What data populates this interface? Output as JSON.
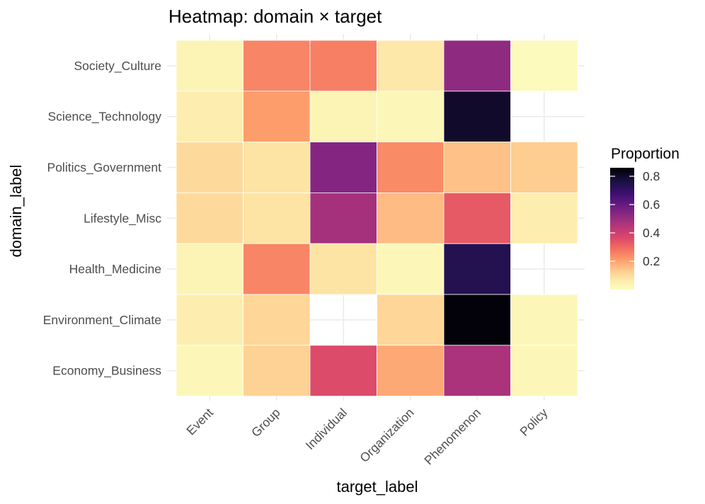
{
  "chart_data": {
    "type": "heatmap",
    "title": "Heatmap: domain × target",
    "xlabel": "target_label",
    "ylabel": "domain_label",
    "x": [
      "Event",
      "Group",
      "Individual",
      "Organization",
      "Phenomenon",
      "Policy"
    ],
    "y": [
      "Society_Culture",
      "Science_Technology",
      "Politics_Government",
      "Lifestyle_Misc",
      "Health_Medicine",
      "Environment_Climate",
      "Economy_Business"
    ],
    "values": [
      [
        0.03,
        0.25,
        0.26,
        0.07,
        0.52,
        0.01
      ],
      [
        0.05,
        0.21,
        0.03,
        0.02,
        0.8,
        null
      ],
      [
        0.1,
        0.08,
        0.54,
        0.24,
        0.15,
        0.13
      ],
      [
        0.1,
        0.08,
        0.48,
        0.16,
        0.33,
        0.05
      ],
      [
        0.03,
        0.25,
        0.08,
        0.02,
        0.74,
        null
      ],
      [
        0.05,
        0.11,
        null,
        0.11,
        0.85,
        0.02
      ],
      [
        0.02,
        0.12,
        0.36,
        0.19,
        0.47,
        0.02
      ]
    ],
    "colorbar": {
      "title": "Proportion",
      "ticks": [
        0.2,
        0.4,
        0.6,
        0.8
      ],
      "range": [
        0.0,
        0.86
      ],
      "palette": "magma"
    },
    "grid": true,
    "legend_position": "right"
  }
}
